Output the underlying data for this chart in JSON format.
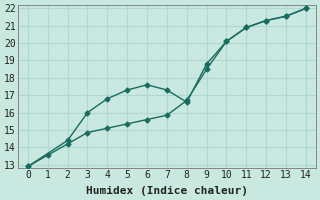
{
  "xlabel": "Humidex (Indice chaleur)",
  "ylabel": "",
  "bg_color": "#c8e8e0",
  "grid_color": "#b0d8d0",
  "line_color": "#1a6b60",
  "xlim": [
    -0.5,
    14.5
  ],
  "ylim": [
    12.8,
    22.2
  ],
  "xticks": [
    0,
    1,
    2,
    3,
    4,
    5,
    6,
    7,
    8,
    9,
    10,
    11,
    12,
    13,
    14
  ],
  "yticks": [
    13,
    14,
    15,
    16,
    17,
    18,
    19,
    20,
    21,
    22
  ],
  "line1_x": [
    0,
    1,
    2,
    3,
    4,
    5,
    6,
    7,
    8,
    9,
    10,
    11,
    12,
    13,
    14
  ],
  "line1_y": [
    12.9,
    13.55,
    14.2,
    14.85,
    15.1,
    15.35,
    15.6,
    15.85,
    16.7,
    18.5,
    20.1,
    20.9,
    21.3,
    21.55,
    22.0
  ],
  "line2_x": [
    0,
    2,
    3,
    4,
    5,
    6,
    7,
    8,
    9,
    10,
    11,
    12,
    13,
    14
  ],
  "line2_y": [
    12.9,
    14.4,
    16.0,
    16.8,
    17.3,
    17.6,
    17.3,
    16.6,
    18.8,
    20.1,
    20.9,
    21.3,
    21.55,
    22.0
  ],
  "marker": "D",
  "markersize": 2.5,
  "linewidth": 1.0,
  "font_family": "monospace",
  "xlabel_fontsize": 8,
  "tick_fontsize": 7
}
